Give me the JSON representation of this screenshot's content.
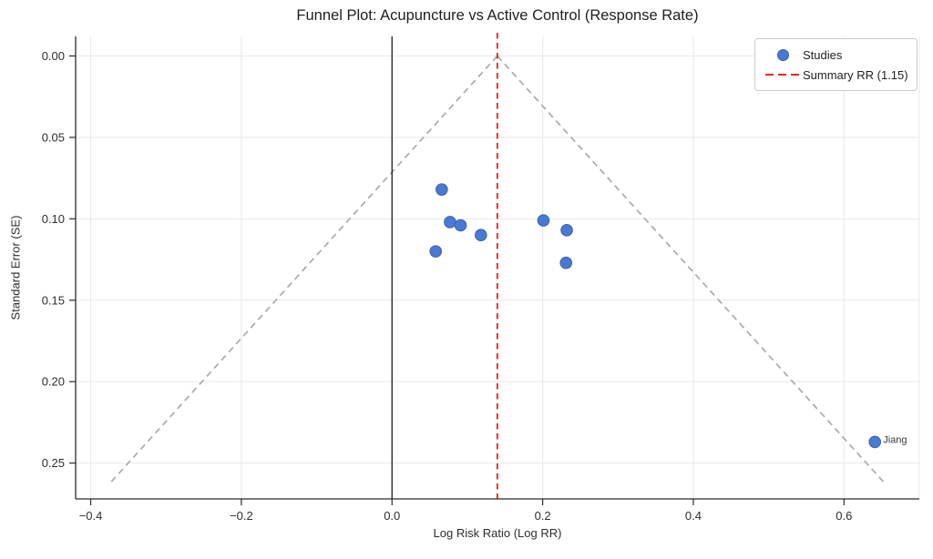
{
  "title": "Funnel Plot: Acupuncture vs Active Control (Response Rate)",
  "legend": {
    "studies_label": "Studies",
    "summary_label": "Summary RR (1.15)"
  },
  "colors": {
    "point_fill": "#4b79d1",
    "point_edge": "#3763b0",
    "summary_line": "#f1251b",
    "funnel_line": "#aaaaaa",
    "zero_line": "#1c1c1c",
    "grid": "#e8e8e8",
    "spine": "#2b2b2b",
    "tick_text": "#2e2e2e",
    "annotation_text": "#3a3a3a"
  },
  "chart_data": {
    "type": "scatter",
    "title": "Funnel Plot: Acupuncture vs Active Control (Response Rate)",
    "xlabel": "Log Risk Ratio (Log RR)",
    "ylabel": "Standard Error (SE)",
    "xlim": [
      -0.42,
      0.7
    ],
    "ylim": [
      -0.012,
      0.272
    ],
    "y_axis_inverted": true,
    "grid": true,
    "legend_position": "upper right",
    "x_ticks": [
      -0.4,
      -0.2,
      0.0,
      0.2,
      0.4,
      0.6
    ],
    "y_ticks": [
      0.0,
      0.05,
      0.1,
      0.15,
      0.2,
      0.25
    ],
    "series": [
      {
        "name": "Studies",
        "marker": "circle",
        "points": [
          {
            "x": 0.066,
            "se": 0.082
          },
          {
            "x": 0.077,
            "se": 0.102
          },
          {
            "x": 0.091,
            "se": 0.104
          },
          {
            "x": 0.118,
            "se": 0.11
          },
          {
            "x": 0.058,
            "se": 0.12
          },
          {
            "x": 0.201,
            "se": 0.101
          },
          {
            "x": 0.232,
            "se": 0.107
          },
          {
            "x": 0.231,
            "se": 0.127
          },
          {
            "x": 0.641,
            "se": 0.237
          }
        ]
      }
    ],
    "summary_rr": 1.15,
    "summary_log_rr": 0.1398,
    "zero_line_x": 0.0,
    "funnel": {
      "apex_x": 0.1398,
      "apex_se": 0.0,
      "z": 1.96,
      "se_max": 0.2615
    },
    "annotations": [
      {
        "text": "Jiang",
        "x": 0.641,
        "se": 0.237,
        "dx": 9,
        "dy": 1
      }
    ]
  }
}
